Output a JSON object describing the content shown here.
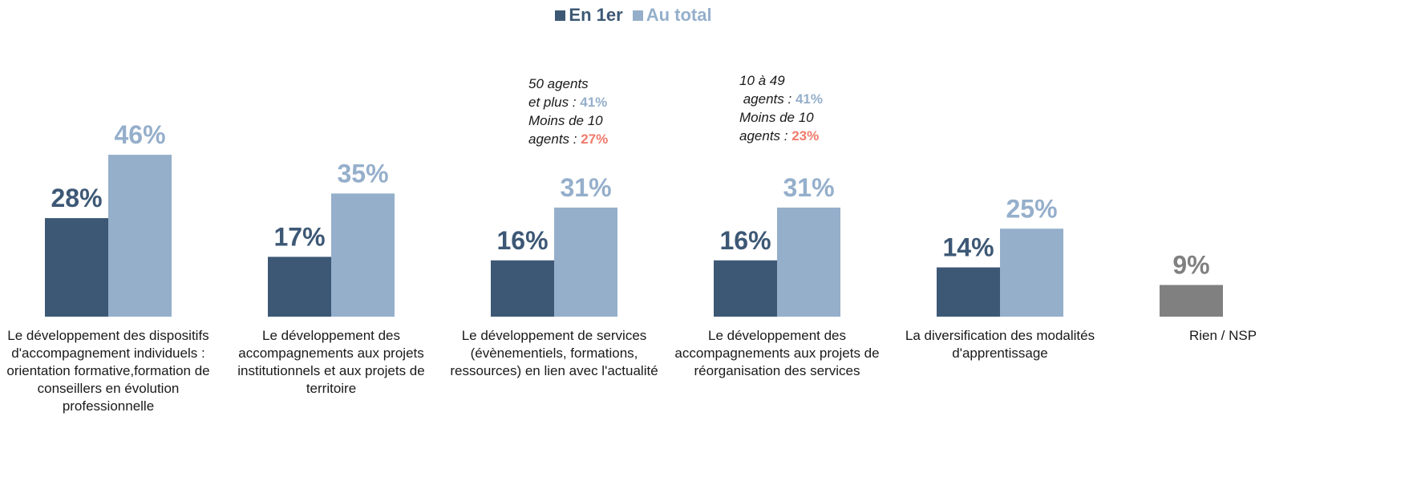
{
  "chart_data": {
    "type": "bar",
    "categories": [
      "Le développement des dispositifs d'accompagnement individuels : orientation formative,formation de conseillers en évolution professionnelle",
      "Le développement des accompagnements aux projets institutionnels et aux projets de territoire",
      "Le développement de services (évènementiels, formations, ressources) en lien avec l'actualité",
      "Le développement des accompagnements aux projets de réorganisation des services",
      "La diversification des modalités d'apprentissage",
      "Rien / NSP"
    ],
    "series": [
      {
        "name": "En 1er",
        "color": "#3d5875",
        "point_colors": [
          "#3d5875",
          "#3d5875",
          "#3d5875",
          "#3d5875",
          "#3d5875",
          "#808080"
        ],
        "values": [
          28,
          17,
          16,
          16,
          14,
          9
        ],
        "value_labels": [
          "28%",
          "17%",
          "16%",
          "16%",
          "14%",
          "9%"
        ]
      },
      {
        "name": "Au total",
        "color": "#95afcb",
        "values": [
          46,
          35,
          31,
          31,
          25,
          null
        ],
        "value_labels": [
          "46%",
          "35%",
          "31%",
          "31%",
          "25%",
          null
        ]
      }
    ],
    "ylim": [
      0,
      50
    ],
    "legend": "top",
    "annotations": [
      {
        "lines": [
          [
            {
              "text": "50 agents"
            }
          ],
          [
            {
              "text": "et plus : "
            },
            {
              "text": "41%",
              "color": "#95afcb"
            }
          ],
          [
            {
              "text": "Moins de 10"
            }
          ],
          [
            {
              "text": "agents : "
            },
            {
              "text": "27%",
              "color": "#f07b6b"
            }
          ]
        ]
      },
      {
        "lines": [
          [
            {
              "text": "10 à 49"
            }
          ],
          [
            {
              "text": " agents : "
            },
            {
              "text": "41%",
              "color": "#95afcb"
            }
          ],
          [
            {
              "text": "Moins de 10"
            }
          ],
          [
            {
              "text": "agents : "
            },
            {
              "text": "23%",
              "color": "#f07b6b"
            }
          ]
        ]
      }
    ]
  }
}
